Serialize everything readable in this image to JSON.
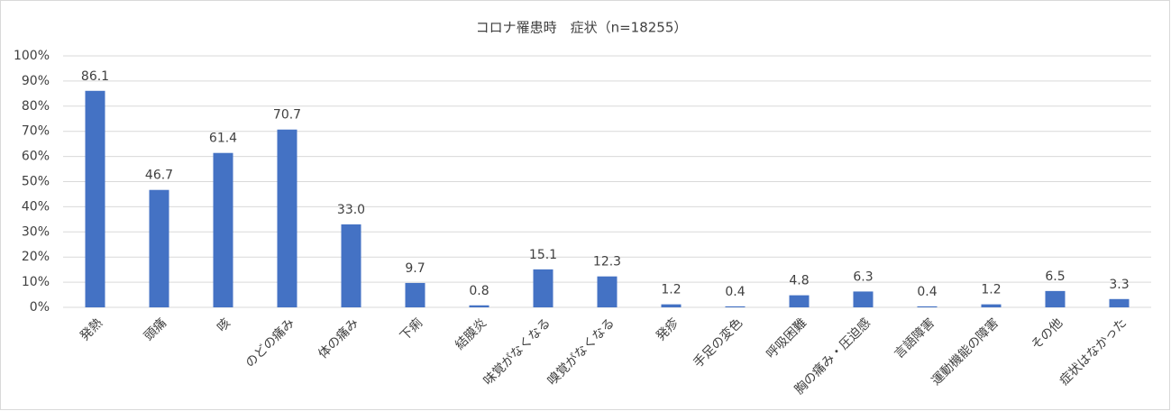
{
  "chart_data": {
    "type": "bar",
    "title": "コロナ罹患時　症状（n=18255）",
    "categories": [
      "発熱",
      "頭痛",
      "咳",
      "のどの痛み",
      "体の痛み",
      "下痢",
      "結膜炎",
      "味覚がなくなる",
      "嗅覚がなくなる",
      "発疹",
      "手足の変色",
      "呼吸困難",
      "胸の痛み・圧迫感",
      "言語障害",
      "運動機能の障害",
      "その他",
      "症状はなかった"
    ],
    "values": [
      86.1,
      46.7,
      61.4,
      70.7,
      33.0,
      9.7,
      0.8,
      15.1,
      12.3,
      1.2,
      0.4,
      4.8,
      6.3,
      0.4,
      1.2,
      6.5,
      3.3
    ],
    "value_labels": [
      "86.1",
      "46.7",
      "61.4",
      "70.7",
      "33.0",
      "9.7",
      "0.8",
      "15.1",
      "12.3",
      "1.2",
      "0.4",
      "4.8",
      "6.3",
      "0.4",
      "1.2",
      "6.5",
      "3.3"
    ],
    "color": "#4472c4",
    "ylim": [
      0,
      100
    ],
    "yticks": [
      {
        "value": 0,
        "label": "0%"
      },
      {
        "value": 10,
        "label": "10%"
      },
      {
        "value": 20,
        "label": "20%"
      },
      {
        "value": 30,
        "label": "30%"
      },
      {
        "value": 40,
        "label": "40%"
      },
      {
        "value": 50,
        "label": "50%"
      },
      {
        "value": 60,
        "label": "60%"
      },
      {
        "value": 70,
        "label": "70%"
      },
      {
        "value": 80,
        "label": "80%"
      },
      {
        "value": 90,
        "label": "90%"
      },
      {
        "value": 100,
        "label": "100%"
      }
    ],
    "grid": true
  }
}
